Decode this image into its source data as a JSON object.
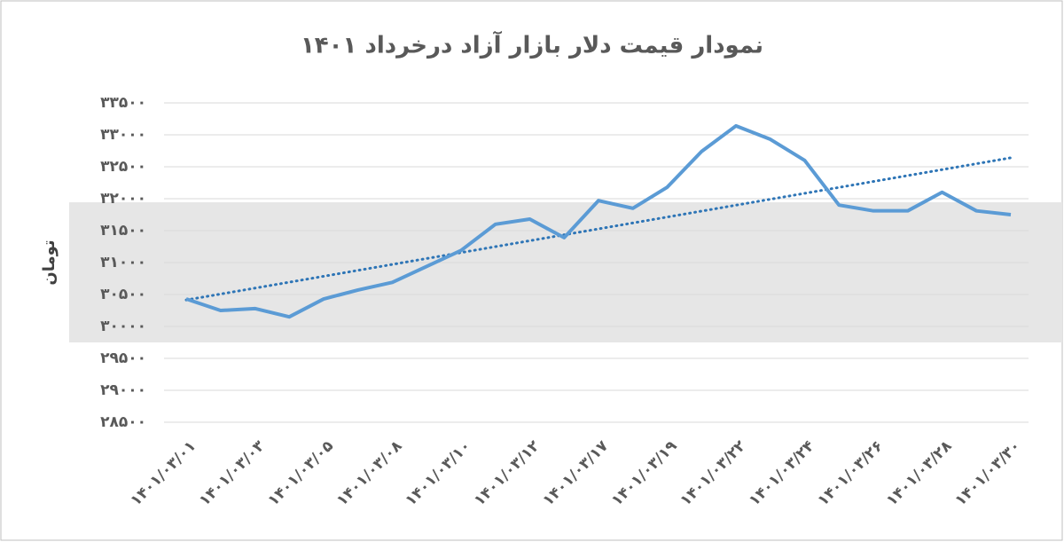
{
  "chart_data": {
    "type": "line",
    "title": "نمودار قیمت دلار بازار آزاد درخرداد ۱۴۰۱",
    "y_label": "تومان",
    "categories": [
      "۱۴۰۱/۰۳/۰۱",
      null,
      "۱۴۰۱/۰۳/۰۳",
      null,
      "۱۴۰۱/۰۳/۰۵",
      null,
      "۱۴۰۱/۰۳/۰۸",
      null,
      "۱۴۰۱/۰۳/۱۰",
      null,
      "۱۴۰۱/۰۳/۱۲",
      null,
      "۱۴۰۱/۰۳/۱۷",
      null,
      "۱۴۰۱/۰۳/۱۹",
      null,
      "۱۴۰۱/۰۳/۲۲",
      null,
      "۱۴۰۱/۰۳/۲۴",
      null,
      "۱۴۰۱/۰۳/۲۶",
      null,
      "۱۴۰۱/۰۳/۲۸",
      null,
      "۱۴۰۱/۰۳/۳۰"
    ],
    "values": [
      30430,
      30250,
      30280,
      30150,
      30430,
      30570,
      30690,
      30940,
      31190,
      31600,
      31680,
      31390,
      31970,
      31850,
      32180,
      32740,
      33140,
      32930,
      32600,
      31900,
      31810,
      31810,
      32100,
      31810,
      31750
    ],
    "color": "#5b9bd5",
    "trendline": true,
    "trend_color": "#2e75b6",
    "ylim": [
      28500,
      33500
    ],
    "yticks": [
      {
        "value": 28500,
        "label": "۲۸۵۰۰"
      },
      {
        "value": 29000,
        "label": "۲۹۰۰۰"
      },
      {
        "value": 29500,
        "label": "۲۹۵۰۰"
      },
      {
        "value": 30000,
        "label": "۳۰۰۰۰"
      },
      {
        "value": 30500,
        "label": "۳۰۵۰۰"
      },
      {
        "value": 31000,
        "label": "۳۱۰۰۰"
      },
      {
        "value": 31500,
        "label": "۳۱۵۰۰"
      },
      {
        "value": 32000,
        "label": "۳۲۰۰۰"
      },
      {
        "value": 32500,
        "label": "۳۲۵۰۰"
      },
      {
        "value": 33000,
        "label": "۳۳۰۰۰"
      },
      {
        "value": 33500,
        "label": "۳۳۵۰۰"
      }
    ],
    "grid": true
  }
}
